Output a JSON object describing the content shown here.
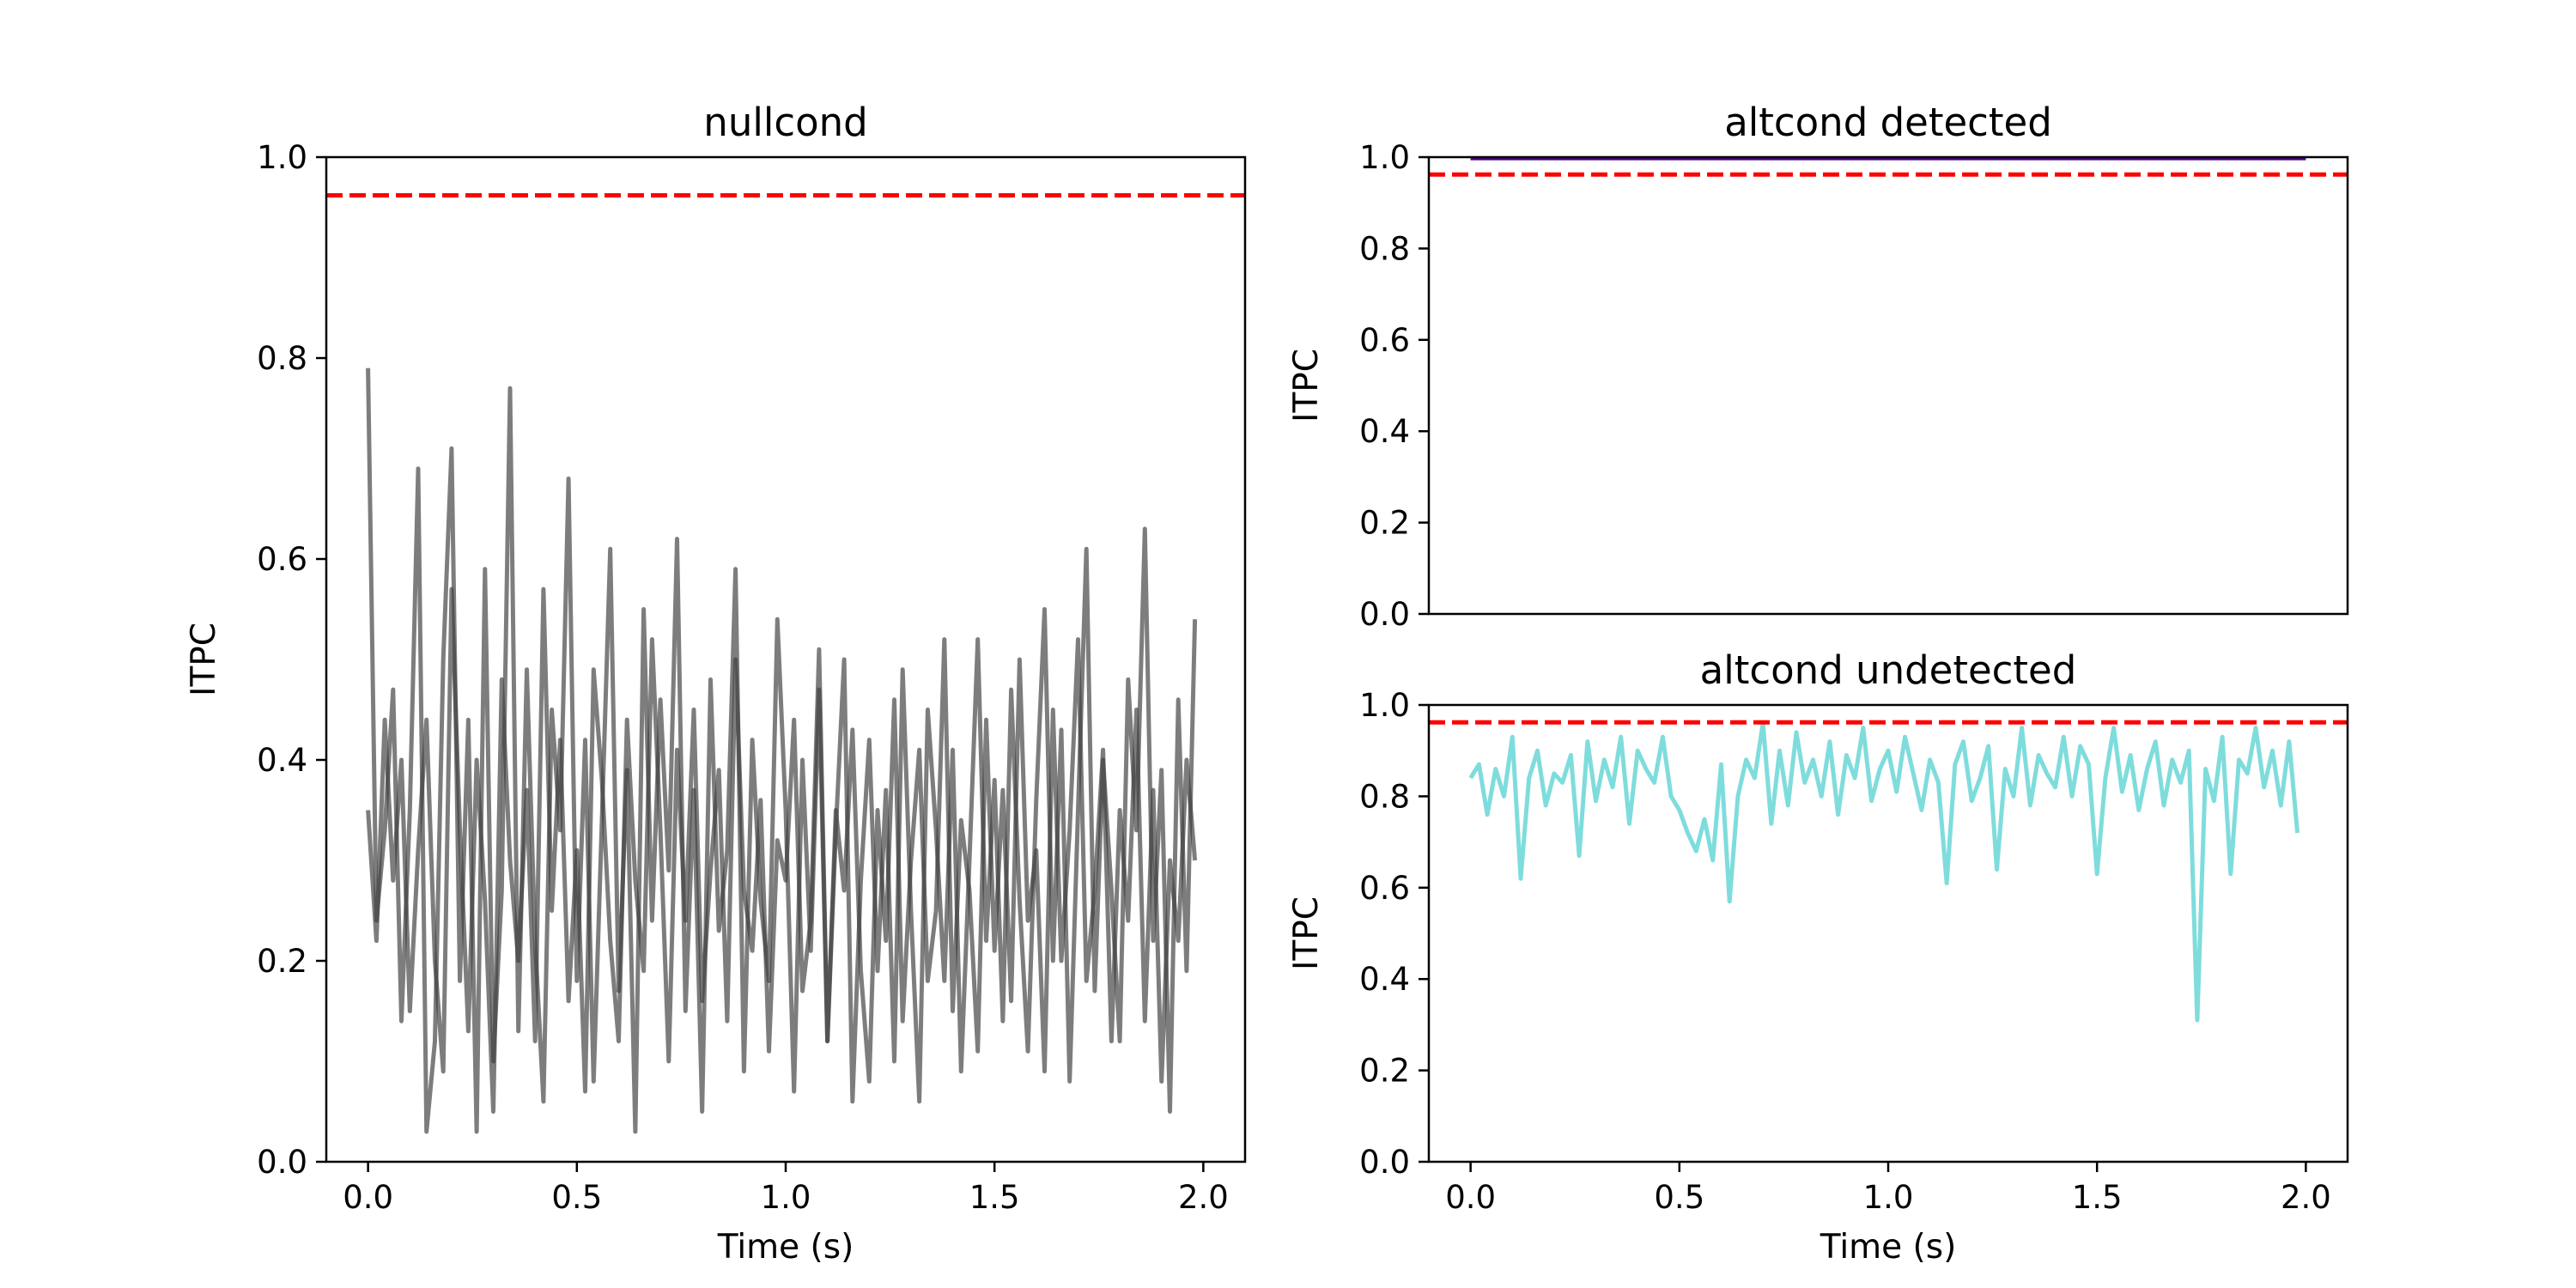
{
  "chart_data": [
    {
      "type": "line",
      "title": "nullcond",
      "xlabel": "Time (s)",
      "ylabel": "ITPC",
      "xlim": [
        -0.1,
        2.1
      ],
      "ylim": [
        0.0,
        1.0
      ],
      "xticks": [
        "0.0",
        "0.5",
        "1.0",
        "1.5",
        "2.0"
      ],
      "yticks": [
        "0.0",
        "0.2",
        "0.4",
        "0.6",
        "0.8",
        "1.0"
      ],
      "threshold": 0.962,
      "threshold_color": "#ff0000",
      "line_color": "#404040",
      "series": [
        {
          "x": [
            0.0,
            0.02,
            0.04,
            0.06,
            0.08,
            0.1,
            0.12,
            0.14,
            0.16,
            0.18,
            0.2,
            0.22,
            0.24,
            0.26,
            0.28,
            0.3,
            0.32,
            0.34,
            0.36,
            0.38,
            0.4,
            0.42,
            0.44,
            0.46,
            0.48,
            0.5,
            0.52,
            0.54,
            0.56,
            0.58,
            0.6,
            0.62,
            0.64,
            0.66,
            0.68,
            0.7,
            0.72,
            0.74,
            0.76,
            0.78,
            0.8,
            0.82,
            0.84,
            0.86,
            0.88,
            0.9,
            0.92,
            0.94,
            0.96,
            0.98,
            1.0,
            1.02,
            1.04,
            1.06,
            1.08,
            1.1,
            1.12,
            1.14,
            1.16,
            1.18,
            1.2,
            1.22,
            1.24,
            1.26,
            1.28,
            1.3,
            1.32,
            1.34,
            1.36,
            1.38,
            1.4,
            1.42,
            1.44,
            1.46,
            1.48,
            1.5,
            1.52,
            1.54,
            1.56,
            1.58,
            1.6,
            1.62,
            1.64,
            1.66,
            1.68,
            1.7,
            1.72,
            1.74,
            1.76,
            1.78,
            1.8,
            1.82,
            1.84,
            1.86,
            1.88,
            1.9,
            1.92,
            1.94,
            1.96,
            1.98
          ],
          "y": [
            0.79,
            0.24,
            0.33,
            0.47,
            0.14,
            0.35,
            0.69,
            0.03,
            0.12,
            0.5,
            0.71,
            0.18,
            0.44,
            0.03,
            0.59,
            0.1,
            0.27,
            0.77,
            0.13,
            0.49,
            0.22,
            0.06,
            0.45,
            0.33,
            0.68,
            0.18,
            0.42,
            0.08,
            0.34,
            0.61,
            0.17,
            0.39,
            0.03,
            0.55,
            0.24,
            0.46,
            0.29,
            0.62,
            0.15,
            0.37,
            0.05,
            0.48,
            0.23,
            0.31,
            0.59,
            0.09,
            0.42,
            0.26,
            0.18,
            0.54,
            0.35,
            0.07,
            0.4,
            0.21,
            0.47,
            0.12,
            0.33,
            0.5,
            0.06,
            0.28,
            0.42,
            0.19,
            0.37,
            0.1,
            0.49,
            0.25,
            0.06,
            0.45,
            0.33,
            0.18,
            0.41,
            0.09,
            0.3,
            0.52,
            0.22,
            0.38,
            0.14,
            0.47,
            0.26,
            0.11,
            0.36,
            0.55,
            0.2,
            0.43,
            0.08,
            0.35,
            0.61,
            0.17,
            0.4,
            0.27,
            0.12,
            0.48,
            0.33,
            0.63,
            0.22,
            0.39,
            0.05,
            0.46,
            0.19,
            0.54
          ]
        },
        {
          "x": [
            0.0,
            0.02,
            0.04,
            0.06,
            0.08,
            0.1,
            0.12,
            0.14,
            0.16,
            0.18,
            0.2,
            0.22,
            0.24,
            0.26,
            0.28,
            0.3,
            0.32,
            0.34,
            0.36,
            0.38,
            0.4,
            0.42,
            0.44,
            0.46,
            0.48,
            0.5,
            0.52,
            0.54,
            0.56,
            0.58,
            0.6,
            0.62,
            0.64,
            0.66,
            0.68,
            0.7,
            0.72,
            0.74,
            0.76,
            0.78,
            0.8,
            0.82,
            0.84,
            0.86,
            0.88,
            0.9,
            0.92,
            0.94,
            0.96,
            0.98,
            1.0,
            1.02,
            1.04,
            1.06,
            1.08,
            1.1,
            1.12,
            1.14,
            1.16,
            1.18,
            1.2,
            1.22,
            1.24,
            1.26,
            1.28,
            1.3,
            1.32,
            1.34,
            1.36,
            1.38,
            1.4,
            1.42,
            1.44,
            1.46,
            1.48,
            1.5,
            1.52,
            1.54,
            1.56,
            1.58,
            1.6,
            1.62,
            1.64,
            1.66,
            1.68,
            1.7,
            1.72,
            1.74,
            1.76,
            1.78,
            1.8,
            1.82,
            1.84,
            1.86,
            1.88,
            1.9,
            1.92,
            1.94,
            1.96,
            1.98
          ],
          "y": [
            0.35,
            0.22,
            0.44,
            0.28,
            0.4,
            0.15,
            0.31,
            0.44,
            0.2,
            0.09,
            0.57,
            0.33,
            0.13,
            0.4,
            0.26,
            0.05,
            0.48,
            0.3,
            0.2,
            0.37,
            0.12,
            0.57,
            0.25,
            0.42,
            0.16,
            0.31,
            0.07,
            0.49,
            0.38,
            0.22,
            0.12,
            0.44,
            0.28,
            0.19,
            0.52,
            0.33,
            0.1,
            0.41,
            0.24,
            0.45,
            0.16,
            0.29,
            0.39,
            0.14,
            0.5,
            0.27,
            0.21,
            0.36,
            0.11,
            0.32,
            0.28,
            0.44,
            0.17,
            0.24,
            0.51,
            0.12,
            0.35,
            0.27,
            0.43,
            0.19,
            0.08,
            0.35,
            0.22,
            0.46,
            0.14,
            0.3,
            0.41,
            0.18,
            0.25,
            0.52,
            0.15,
            0.34,
            0.27,
            0.11,
            0.44,
            0.21,
            0.37,
            0.16,
            0.5,
            0.24,
            0.31,
            0.09,
            0.45,
            0.2,
            0.33,
            0.52,
            0.18,
            0.27,
            0.41,
            0.12,
            0.35,
            0.24,
            0.45,
            0.14,
            0.37,
            0.08,
            0.3,
            0.22,
            0.4,
            0.3
          ]
        }
      ]
    },
    {
      "type": "line",
      "title": "altcond detected",
      "xlabel": "",
      "ylabel": "ITPC",
      "xlim": [
        -0.1,
        2.1
      ],
      "ylim": [
        0.0,
        1.0
      ],
      "xticks": [],
      "yticks": [
        "0.0",
        "0.2",
        "0.4",
        "0.6",
        "0.8",
        "1.0"
      ],
      "threshold": 0.962,
      "threshold_color": "#ff0000",
      "line_color": "#4b0082",
      "series": [
        {
          "x": [
            0.0,
            0.5,
            1.0,
            1.5,
            2.0
          ],
          "y": [
            0.998,
            0.998,
            0.998,
            0.998,
            0.998
          ]
        }
      ]
    },
    {
      "type": "line",
      "title": "altcond undetected",
      "xlabel": "Time (s)",
      "ylabel": "ITPC",
      "xlim": [
        -0.1,
        2.1
      ],
      "ylim": [
        0.0,
        1.0
      ],
      "xticks": [
        "0.0",
        "0.5",
        "1.0",
        "1.5",
        "2.0"
      ],
      "yticks": [
        "0.0",
        "0.2",
        "0.4",
        "0.6",
        "0.8",
        "1.0"
      ],
      "threshold": 0.962,
      "threshold_color": "#ff0000",
      "line_color": "#7fdcdc",
      "series": [
        {
          "x": [
            0.0,
            0.02,
            0.04,
            0.06,
            0.08,
            0.1,
            0.12,
            0.14,
            0.16,
            0.18,
            0.2,
            0.22,
            0.24,
            0.26,
            0.28,
            0.3,
            0.32,
            0.34,
            0.36,
            0.38,
            0.4,
            0.42,
            0.44,
            0.46,
            0.48,
            0.5,
            0.52,
            0.54,
            0.56,
            0.58,
            0.6,
            0.62,
            0.64,
            0.66,
            0.68,
            0.7,
            0.72,
            0.74,
            0.76,
            0.78,
            0.8,
            0.82,
            0.84,
            0.86,
            0.88,
            0.9,
            0.92,
            0.94,
            0.96,
            0.98,
            1.0,
            1.02,
            1.04,
            1.06,
            1.08,
            1.1,
            1.12,
            1.14,
            1.16,
            1.18,
            1.2,
            1.22,
            1.24,
            1.26,
            1.28,
            1.3,
            1.32,
            1.34,
            1.36,
            1.38,
            1.4,
            1.42,
            1.44,
            1.46,
            1.48,
            1.5,
            1.52,
            1.54,
            1.56,
            1.58,
            1.6,
            1.62,
            1.64,
            1.66,
            1.68,
            1.7,
            1.72,
            1.74,
            1.76,
            1.78,
            1.8,
            1.82,
            1.84,
            1.86,
            1.88,
            1.9,
            1.92,
            1.94,
            1.96,
            1.98
          ],
          "y": [
            0.84,
            0.87,
            0.76,
            0.86,
            0.8,
            0.93,
            0.62,
            0.84,
            0.9,
            0.78,
            0.85,
            0.83,
            0.89,
            0.67,
            0.92,
            0.79,
            0.88,
            0.82,
            0.93,
            0.74,
            0.9,
            0.86,
            0.83,
            0.93,
            0.8,
            0.77,
            0.72,
            0.68,
            0.75,
            0.66,
            0.87,
            0.57,
            0.8,
            0.88,
            0.84,
            0.96,
            0.74,
            0.9,
            0.78,
            0.94,
            0.83,
            0.88,
            0.8,
            0.92,
            0.76,
            0.89,
            0.84,
            0.95,
            0.79,
            0.86,
            0.9,
            0.81,
            0.93,
            0.85,
            0.77,
            0.88,
            0.83,
            0.61,
            0.87,
            0.92,
            0.79,
            0.84,
            0.91,
            0.64,
            0.86,
            0.8,
            0.95,
            0.78,
            0.89,
            0.85,
            0.82,
            0.93,
            0.8,
            0.91,
            0.87,
            0.63,
            0.84,
            0.95,
            0.81,
            0.89,
            0.77,
            0.86,
            0.92,
            0.78,
            0.88,
            0.83,
            0.9,
            0.31,
            0.86,
            0.79,
            0.93,
            0.63,
            0.88,
            0.85,
            0.95,
            0.82,
            0.9,
            0.78,
            0.92,
            0.72
          ]
        }
      ]
    }
  ]
}
